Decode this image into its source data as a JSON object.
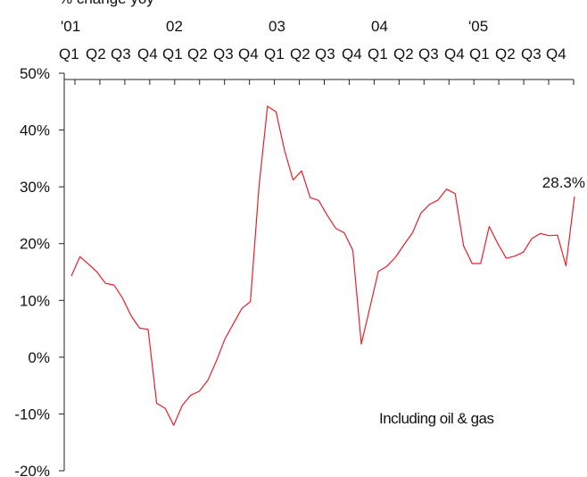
{
  "chart_data": {
    "type": "line",
    "ylabel": "% change yoy",
    "ylim": [
      -20,
      50
    ],
    "yticks": [
      "50%",
      "40%",
      "30%",
      "20%",
      "10%",
      "0%",
      "-10%",
      "-20%"
    ],
    "ytick_values": [
      50,
      40,
      30,
      20,
      10,
      0,
      -10,
      -20
    ],
    "year_labels": [
      "'01",
      "02",
      "03",
      "04",
      "'05"
    ],
    "quarter_labels": [
      "Q1",
      "Q2",
      "Q3",
      "Q4",
      "Q1",
      "Q2",
      "Q3",
      "Q4",
      "Q1",
      "Q2",
      "Q3",
      "Q4",
      "Q1",
      "Q2",
      "Q3",
      "Q4",
      "Q1",
      "Q2",
      "Q3",
      "Q4"
    ],
    "grid": false,
    "series": [
      {
        "color": "#e8202a",
        "x": [
          1,
          2,
          3,
          4,
          5,
          6,
          7,
          8,
          9,
          10,
          11,
          12,
          13,
          14,
          15,
          16,
          17,
          18,
          19,
          20,
          21,
          22,
          23,
          24,
          25,
          26,
          27,
          28,
          29,
          30,
          31,
          32,
          33,
          34,
          35,
          36,
          37,
          38,
          39,
          40,
          41,
          42,
          43,
          44,
          45,
          46,
          47,
          48,
          49,
          50,
          51,
          52,
          53,
          54,
          55,
          56,
          57,
          58,
          59,
          60
        ],
        "values": [
          14.3,
          17.7,
          16.4,
          15.0,
          13.0,
          12.7,
          10.4,
          7.3,
          5.1,
          4.9,
          -8.1,
          -9.0,
          -12.0,
          -8.5,
          -6.7,
          -6.0,
          -4.1,
          -0.7,
          3.2,
          5.9,
          8.6,
          9.8,
          30.0,
          44.2,
          43.2,
          36.4,
          31.2,
          32.8,
          28.1,
          27.6,
          25.0,
          22.7,
          21.9,
          18.8,
          2.3,
          8.7,
          15.1,
          16.0,
          17.6,
          19.8,
          21.9,
          25.4,
          26.9,
          27.7,
          29.6,
          28.8,
          19.6,
          16.5,
          16.5,
          23.0,
          20.0,
          17.4,
          17.8,
          18.5,
          20.9,
          21.8,
          21.4,
          21.5,
          16.1,
          28.3
        ]
      }
    ],
    "annotations": [
      "28.3%",
      "Including oil & gas"
    ]
  }
}
